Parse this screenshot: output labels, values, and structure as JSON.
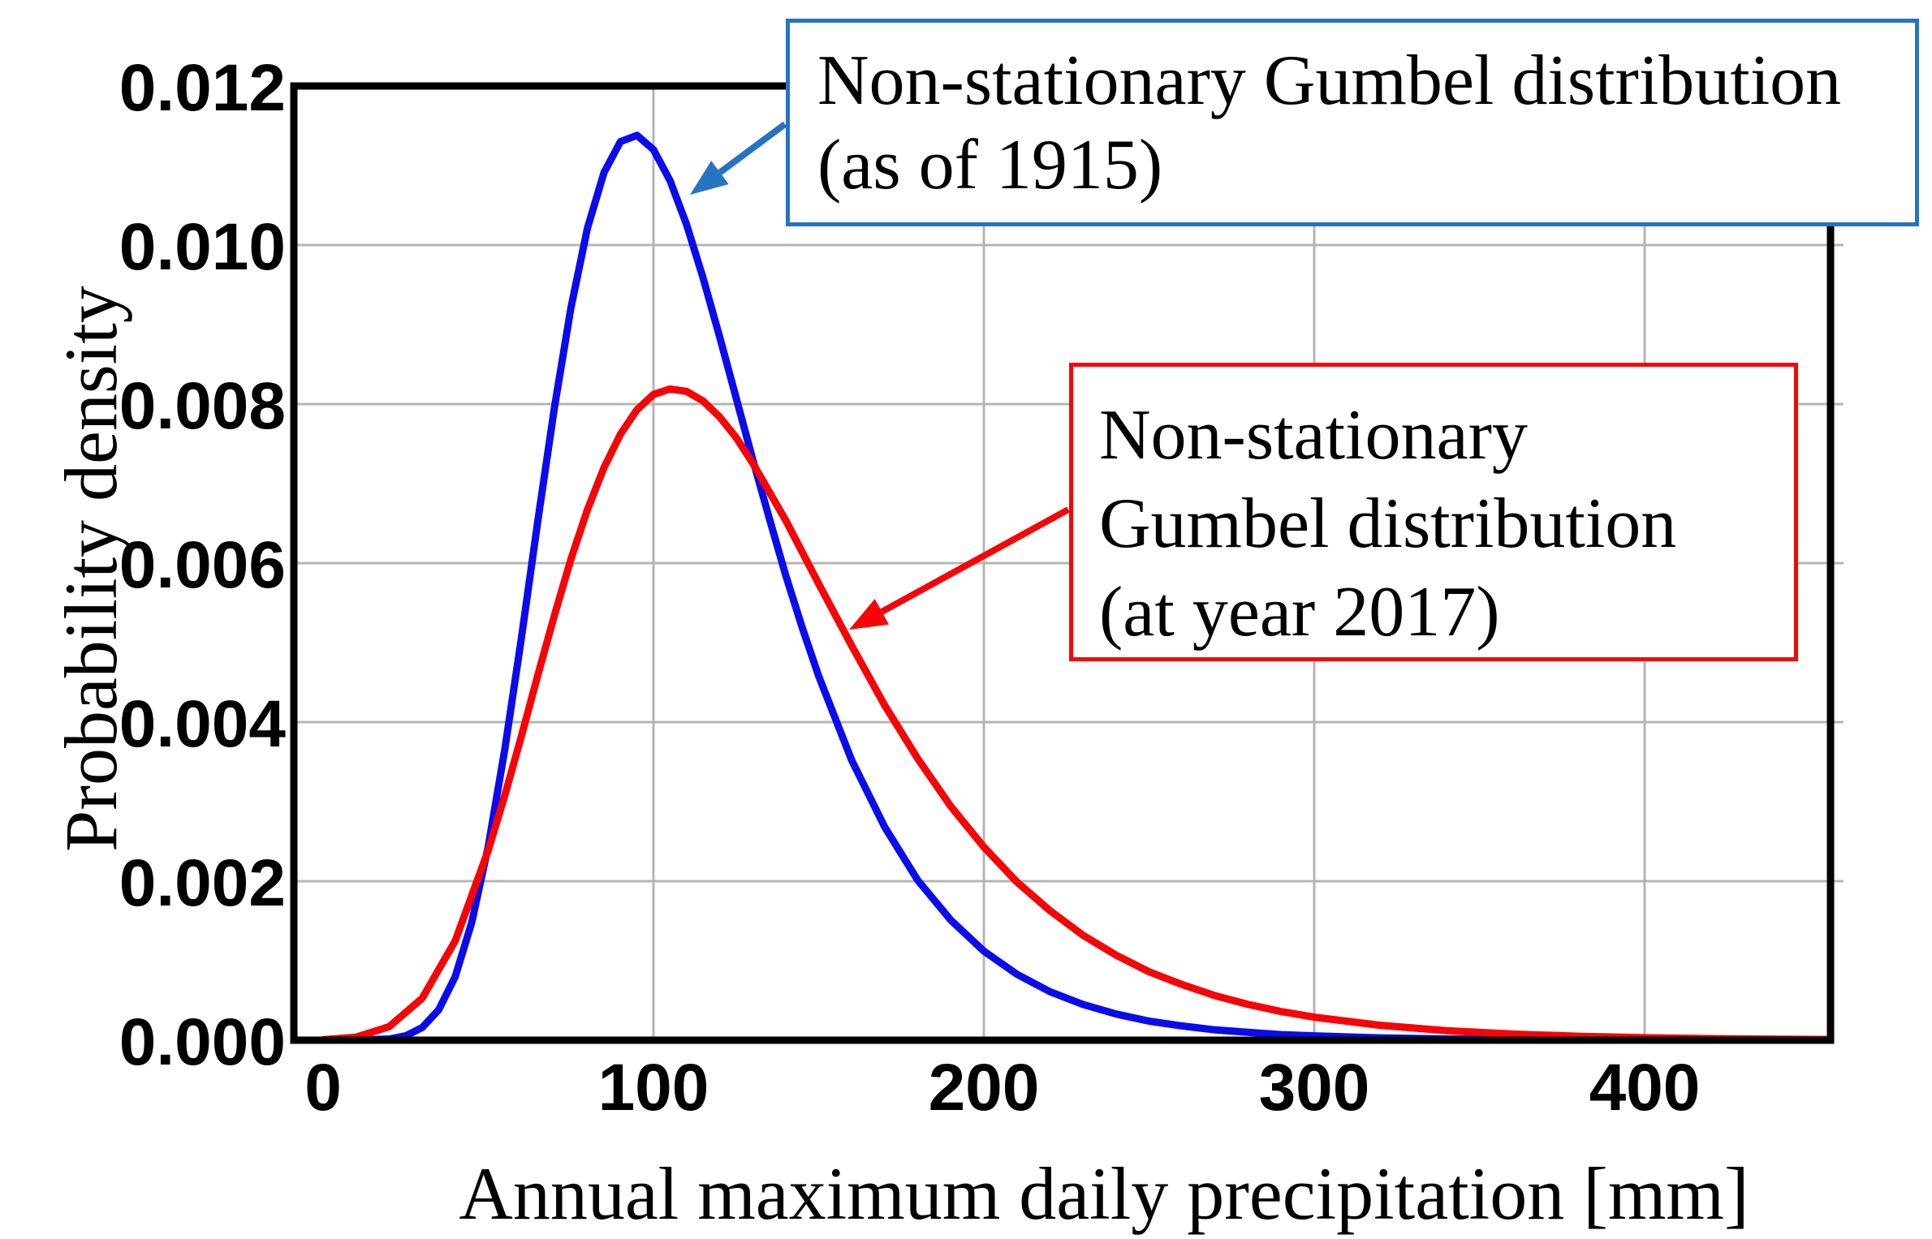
{
  "figure": {
    "background_color": "#ffffff",
    "y_axis": {
      "title": "Probability density",
      "tick_labels": [
        "0.000",
        "0.002",
        "0.004",
        "0.006",
        "0.008",
        "0.010",
        "0.012"
      ],
      "tick_values": [
        0,
        0.002,
        0.004,
        0.006,
        0.008,
        0.01,
        0.012
      ],
      "min": 0,
      "max": 0.012
    },
    "x_axis": {
      "title": "Annual maximum daily precipitation [mm]",
      "tick_labels": [
        "0",
        "100",
        "200",
        "300",
        "400"
      ],
      "tick_values": [
        0,
        100,
        200,
        300,
        400
      ],
      "min_mm": -9,
      "max_mm": 456
    },
    "annotations": [
      {
        "id": "gumbel-1915",
        "lines": [
          "Non-stationary Gumbel distribution",
          "(as of 1915)"
        ],
        "border_color": "#2673c2",
        "arrow_color": "#2673c2",
        "points_to_series": "as of 1915"
      },
      {
        "id": "gumbel-2017",
        "lines": [
          "Non-stationary",
          "Gumbel distribution",
          "(at year 2017)"
        ],
        "border_color": "#f70408",
        "arrow_color": "#f70408",
        "points_to_series": "at year 2017"
      }
    ],
    "colors": {
      "curve_1915": "#0b0bec",
      "curve_2017": "#f70408",
      "callout_blue": "#2673c2",
      "callout_red": "#f70408",
      "gridline": "#b5b5b5",
      "frame": "#000000"
    }
  },
  "chart_data": {
    "type": "line",
    "title": "",
    "xlabel": "Annual maximum daily precipitation [mm]",
    "ylabel": "Probability density",
    "xlim": [
      -9,
      456
    ],
    "ylim": [
      0,
      0.012
    ],
    "grid": true,
    "legend_position": "annotation-callouts",
    "series": [
      {
        "name": "Non-stationary Gumbel distribution (as of 1915)",
        "color": "#0b0bec",
        "distribution": "Gumbel",
        "mode_mm": 94,
        "scale_mm": 32.3,
        "peak_density": 0.0114,
        "points": [
          [
            0,
            0
          ],
          [
            10,
            6e-07
          ],
          [
            20,
            1.55e-05
          ],
          [
            25,
            5.5e-05
          ],
          [
            30,
            0.000159
          ],
          [
            35,
            0.000384
          ],
          [
            40,
            0.0008
          ],
          [
            45,
            0.00148
          ],
          [
            50,
            0.00244
          ],
          [
            55,
            0.00366
          ],
          [
            60,
            0.00505
          ],
          [
            65,
            0.00653
          ],
          [
            70,
            0.00795
          ],
          [
            75,
            0.00921
          ],
          [
            80,
            0.01021
          ],
          [
            85,
            0.01091
          ],
          [
            90,
            0.0113
          ],
          [
            95,
            0.01138
          ],
          [
            100,
            0.0112
          ],
          [
            105,
            0.01081
          ],
          [
            110,
            0.01026
          ],
          [
            115,
            0.00959
          ],
          [
            120,
            0.00885
          ],
          [
            125,
            0.00808
          ],
          [
            130,
            0.00731
          ],
          [
            135,
            0.00657
          ],
          [
            140,
            0.00585
          ],
          [
            145,
            0.00519
          ],
          [
            150,
            0.00458
          ],
          [
            160,
            0.00352
          ],
          [
            170,
            0.00268
          ],
          [
            180,
            0.00201
          ],
          [
            190,
            0.00151
          ],
          [
            200,
            0.00112
          ],
          [
            210,
            0.00083
          ],
          [
            220,
            0.00061
          ],
          [
            230,
            0.00045
          ],
          [
            240,
            0.00033
          ],
          [
            250,
            0.00024
          ],
          [
            260,
            0.00018
          ],
          [
            270,
            0.00013
          ],
          [
            280,
            0.0001
          ],
          [
            290,
            7e-05
          ],
          [
            300,
            5.5e-05
          ],
          [
            320,
            3e-05
          ],
          [
            340,
            1.6e-05
          ],
          [
            360,
            9e-06
          ],
          [
            380,
            5e-06
          ],
          [
            400,
            3e-06
          ],
          [
            420,
            1.5e-06
          ],
          [
            440,
            8e-07
          ],
          [
            455,
            5e-07
          ]
        ]
      },
      {
        "name": "Non-stationary Gumbel distribution (at year 2017)",
        "color": "#f70408",
        "distribution": "Gumbel",
        "mode_mm": 106,
        "scale_mm": 44.9,
        "peak_density": 0.0082,
        "points": [
          [
            0,
            6e-06
          ],
          [
            10,
            3.9e-05
          ],
          [
            20,
            0.00017
          ],
          [
            30,
            0.000528
          ],
          [
            40,
            0.00125
          ],
          [
            50,
            0.00239
          ],
          [
            55,
            0.00308
          ],
          [
            60,
            0.00382
          ],
          [
            65,
            0.00459
          ],
          [
            70,
            0.00534
          ],
          [
            75,
            0.00605
          ],
          [
            80,
            0.00667
          ],
          [
            85,
            0.0072
          ],
          [
            90,
            0.00762
          ],
          [
            95,
            0.00793
          ],
          [
            100,
            0.00812
          ],
          [
            105,
            0.00819
          ],
          [
            110,
            0.00816
          ],
          [
            115,
            0.00804
          ],
          [
            120,
            0.00784
          ],
          [
            125,
            0.00758
          ],
          [
            130,
            0.00726
          ],
          [
            140,
            0.00654
          ],
          [
            150,
            0.00574
          ],
          [
            160,
            0.00496
          ],
          [
            170,
            0.00421
          ],
          [
            180,
            0.00354
          ],
          [
            190,
            0.00294
          ],
          [
            200,
            0.00243
          ],
          [
            210,
            0.00199
          ],
          [
            220,
            0.00163
          ],
          [
            230,
            0.00132
          ],
          [
            240,
            0.00107
          ],
          [
            250,
            0.00086
          ],
          [
            260,
            0.0007
          ],
          [
            270,
            0.00056
          ],
          [
            280,
            0.00045
          ],
          [
            290,
            0.00036
          ],
          [
            300,
            0.00029
          ],
          [
            320,
            0.000188
          ],
          [
            340,
            0.00012
          ],
          [
            360,
            7.8e-05
          ],
          [
            380,
            5e-05
          ],
          [
            400,
            3.2e-05
          ],
          [
            420,
            2e-05
          ],
          [
            440,
            1.3e-05
          ],
          [
            455,
            9e-06
          ]
        ]
      }
    ]
  }
}
